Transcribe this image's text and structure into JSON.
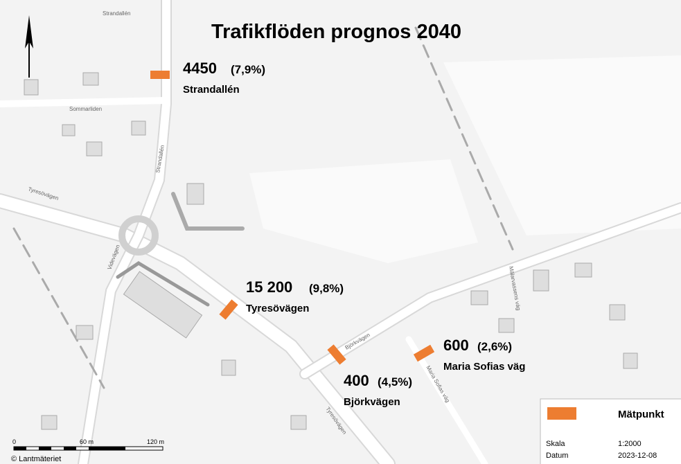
{
  "title": "Trafikflöden prognos 2040",
  "points": [
    {
      "value": "4450",
      "share": "(7,9%)",
      "street": "Strandallén"
    },
    {
      "value": "15 200",
      "share": "(9,8%)",
      "street": "Tyresövägen"
    },
    {
      "value": "400",
      "share": "(4,5%)",
      "street": "Björkvägen"
    },
    {
      "value": "600",
      "share": "(2,6%)",
      "street": "Maria Sofias väg"
    }
  ],
  "legend": {
    "marker_label": "Mätpunkt",
    "scale_label": "Skala",
    "scale_value": "1:2000",
    "date_label": "Datum",
    "date_value": "2023-12-08"
  },
  "scalebar": {
    "zero": "0",
    "mid": "60 m",
    "end": "120 m"
  },
  "credit": "© Lantmäteriet",
  "streets": [
    "Strandallén",
    "Sommarliden",
    "Tyresövägen",
    "Videvägen",
    "Björkvägen",
    "Maria Sofias väg",
    "Mälarvassens väg",
    "Tyresövägen",
    "Strandallén"
  ]
}
